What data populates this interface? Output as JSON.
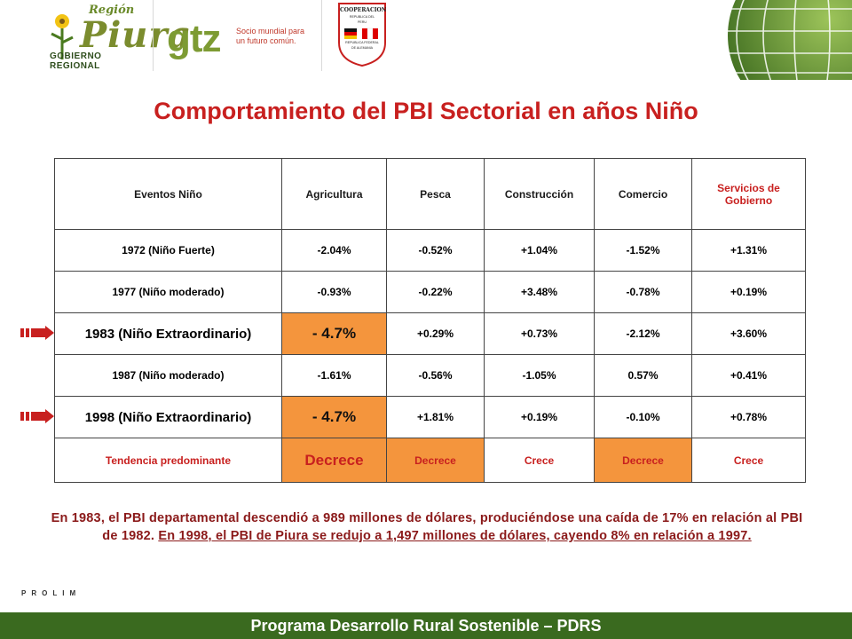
{
  "header": {
    "region_logo": {
      "top": "Región",
      "name": "Piura",
      "bottom": "GOBIERNO REGIONAL"
    },
    "gtz_logo": {
      "name": "gtz",
      "tagline_1": "Socio mundial para",
      "tagline_2": "un futuro común."
    },
    "coop_badge": {
      "title": "COOPERACION",
      "line_1": "REPUBLICA DEL",
      "line_2": "PERU",
      "line_3": "REPUBLICA FEDERAL",
      "line_4": "DE ALEMANIA"
    }
  },
  "title": "Comportamiento del PBI Sectorial en años Niño",
  "table": {
    "headers": [
      "Eventos Niño",
      "Agricultura",
      "Pesca",
      "Construcción",
      "Comercio",
      "Servicios de Gobierno"
    ],
    "rows": [
      {
        "event": "1972 (Niño Fuerte)",
        "agricultura": "-2.04%",
        "pesca": "-0.52%",
        "construccion": "+1.04%",
        "comercio": "-1.52%",
        "servicios": "+1.31%"
      },
      {
        "event": "1977 (Niño moderado)",
        "agricultura": "-0.93%",
        "pesca": "-0.22%",
        "construccion": "+3.48%",
        "comercio": "-0.78%",
        "servicios": "+0.19%"
      },
      {
        "event": "1983 (Niño Extraordinario)",
        "agricultura": "- 4.7%",
        "pesca": "+0.29%",
        "construccion": "+0.73%",
        "comercio": "-2.12%",
        "servicios": "+3.60%"
      },
      {
        "event": "1987 (Niño moderado)",
        "agricultura": "-1.61%",
        "pesca": "-0.56%",
        "construccion": "-1.05%",
        "comercio": "0.57%",
        "servicios": "+0.41%"
      },
      {
        "event": "1998 (Niño Extraordinario)",
        "agricultura": "- 4.7%",
        "pesca": "+1.81%",
        "construccion": "+0.19%",
        "comercio": "-0.10%",
        "servicios": "+0.78%"
      }
    ],
    "trend": {
      "label": "Tendencia predominante",
      "agricultura": "Decrece",
      "pesca": "Decrece",
      "construccion": "Crece",
      "comercio": "Decrece",
      "servicios": "Crece"
    }
  },
  "note": {
    "part_1": "En 1983, el PBI departamental descendió a 989 millones de dólares, produciéndose una caída de 17% en relación al PBI de 1982.",
    "part_2": "En 1998, el PBI de Piura se redujo a 1,497 millones de dólares, cayendo 8% en relación a 1997."
  },
  "prolim": "PROLIM",
  "footer": "Programa Desarrollo Rural Sostenible – PDRS",
  "colors": {
    "title_red": "#c8201f",
    "highlight_orange": "#f4953d",
    "footer_green": "#3a6a1f",
    "note_red": "#8b1a1a"
  }
}
